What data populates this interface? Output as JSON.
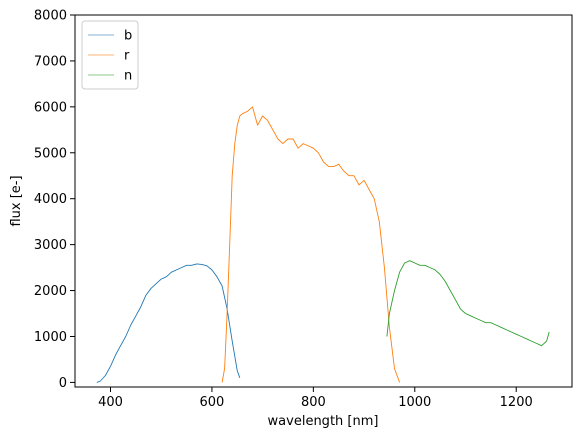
{
  "chart_data": {
    "type": "line",
    "title": "",
    "xlabel": "wavelength [nm]",
    "ylabel": "flux [e-]",
    "xlim": [
      330,
      1310
    ],
    "ylim": [
      -100,
      8000
    ],
    "xticks": [
      400,
      600,
      800,
      1000,
      1200
    ],
    "yticks": [
      0,
      1000,
      2000,
      3000,
      4000,
      5000,
      6000,
      7000,
      8000
    ],
    "grid": false,
    "legend": "top-left",
    "series": [
      {
        "name": "b",
        "color": "#1f77b4",
        "x": [
          373,
          380,
          390,
          400,
          410,
          420,
          430,
          440,
          450,
          460,
          470,
          480,
          490,
          500,
          510,
          520,
          530,
          540,
          550,
          560,
          570,
          580,
          590,
          600,
          610,
          620,
          630,
          640,
          650,
          655
        ],
        "y": [
          0,
          30,
          150,
          350,
          600,
          800,
          1000,
          1250,
          1450,
          1650,
          1900,
          2050,
          2150,
          2250,
          2300,
          2400,
          2450,
          2500,
          2550,
          2550,
          2580,
          2570,
          2540,
          2450,
          2300,
          2100,
          1600,
          900,
          250,
          100
        ]
      },
      {
        "name": "r",
        "color": "#ff7f0e",
        "x": [
          620,
          625,
          630,
          635,
          640,
          645,
          650,
          655,
          660,
          670,
          680,
          690,
          700,
          710,
          720,
          730,
          740,
          750,
          760,
          770,
          780,
          790,
          800,
          810,
          820,
          830,
          840,
          850,
          860,
          870,
          880,
          890,
          900,
          910,
          920,
          930,
          940,
          950,
          960,
          970
        ],
        "y": [
          0,
          300,
          1500,
          3000,
          4500,
          5200,
          5600,
          5800,
          5850,
          5900,
          6000,
          5600,
          5800,
          5700,
          5500,
          5300,
          5200,
          5300,
          5300,
          5100,
          5200,
          5150,
          5100,
          5000,
          4800,
          4700,
          4700,
          4750,
          4600,
          4500,
          4500,
          4300,
          4400,
          4200,
          4000,
          3500,
          2500,
          1200,
          300,
          0
        ]
      },
      {
        "name": "n",
        "color": "#2ca02c",
        "x": [
          945,
          950,
          960,
          970,
          980,
          990,
          1000,
          1010,
          1020,
          1030,
          1040,
          1050,
          1060,
          1070,
          1080,
          1090,
          1100,
          1110,
          1120,
          1130,
          1140,
          1150,
          1160,
          1170,
          1180,
          1190,
          1200,
          1210,
          1220,
          1230,
          1240,
          1250,
          1260,
          1265
        ],
        "y": [
          1000,
          1500,
          2000,
          2400,
          2600,
          2650,
          2600,
          2550,
          2550,
          2500,
          2450,
          2350,
          2200,
          2000,
          1800,
          1600,
          1500,
          1450,
          1400,
          1350,
          1300,
          1300,
          1250,
          1200,
          1150,
          1100,
          1050,
          1000,
          950,
          900,
          850,
          800,
          900,
          1100
        ]
      }
    ]
  }
}
